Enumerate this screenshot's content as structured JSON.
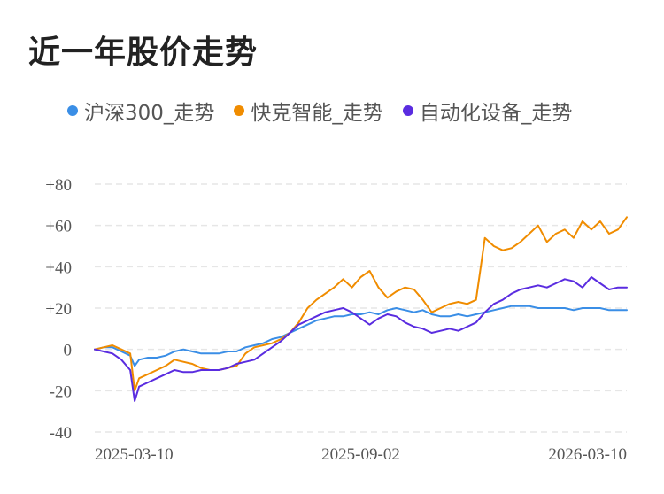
{
  "title": "近一年股价走势",
  "chart_data": {
    "type": "line",
    "title": "近一年股价走势",
    "xlabel": "",
    "ylabel": "",
    "ylim": [
      -40,
      80
    ],
    "y_ticks": [
      "+80",
      "+60",
      "+40",
      "+20",
      "0",
      "-20",
      "-40"
    ],
    "y_tick_values": [
      80,
      60,
      40,
      20,
      0,
      -20,
      -40
    ],
    "x_ticks": [
      "2025-03-10",
      "2025-09-02",
      "2026-03-10"
    ],
    "x_tick_positions": [
      0,
      60,
      120
    ],
    "xlim": [
      0,
      120
    ],
    "x": [
      0,
      2,
      4,
      6,
      8,
      9,
      10,
      12,
      14,
      16,
      18,
      20,
      22,
      24,
      26,
      28,
      30,
      32,
      34,
      36,
      38,
      40,
      42,
      44,
      46,
      48,
      50,
      52,
      54,
      56,
      58,
      60,
      62,
      64,
      66,
      68,
      70,
      72,
      74,
      76,
      78,
      80,
      82,
      84,
      86,
      88,
      90,
      92,
      94,
      96,
      98,
      100,
      102,
      104,
      106,
      108,
      110,
      112,
      114,
      116,
      118,
      120
    ],
    "series": [
      {
        "name": "沪深300_走势",
        "color": "#3a8ee6",
        "values": [
          0,
          1,
          1,
          -1,
          -3,
          -8,
          -5,
          -4,
          -4,
          -3,
          -1,
          0,
          -1,
          -2,
          -2,
          -2,
          -1,
          -1,
          1,
          2,
          3,
          5,
          6,
          8,
          10,
          12,
          14,
          15,
          16,
          16,
          17,
          17,
          18,
          17,
          19,
          20,
          19,
          18,
          19,
          17,
          16,
          16,
          17,
          16,
          17,
          18,
          19,
          20,
          21,
          21,
          21,
          20,
          20,
          20,
          20,
          19,
          20,
          20,
          20,
          19,
          19,
          19
        ]
      },
      {
        "name": "快克智能_走势",
        "color": "#f08c00",
        "values": [
          0,
          1,
          2,
          0,
          -2,
          -20,
          -14,
          -12,
          -10,
          -8,
          -5,
          -6,
          -7,
          -9,
          -10,
          -10,
          -9,
          -8,
          -2,
          1,
          2,
          3,
          5,
          8,
          13,
          20,
          24,
          27,
          30,
          34,
          30,
          35,
          38,
          30,
          25,
          28,
          30,
          29,
          24,
          18,
          20,
          22,
          23,
          22,
          24,
          54,
          50,
          48,
          49,
          52,
          56,
          60,
          52,
          56,
          58,
          54,
          62,
          58,
          62,
          56,
          58,
          64
        ]
      },
      {
        "name": "自动化设备_走势",
        "color": "#5a2ce0",
        "values": [
          0,
          -1,
          -2,
          -5,
          -10,
          -25,
          -18,
          -16,
          -14,
          -12,
          -10,
          -11,
          -11,
          -10,
          -10,
          -10,
          -9,
          -7,
          -6,
          -5,
          -2,
          1,
          4,
          8,
          12,
          14,
          16,
          18,
          19,
          20,
          18,
          15,
          12,
          15,
          17,
          16,
          13,
          11,
          10,
          8,
          9,
          10,
          9,
          11,
          13,
          18,
          22,
          24,
          27,
          29,
          30,
          31,
          30,
          32,
          34,
          33,
          30,
          35,
          32,
          29,
          30,
          30
        ]
      }
    ]
  }
}
